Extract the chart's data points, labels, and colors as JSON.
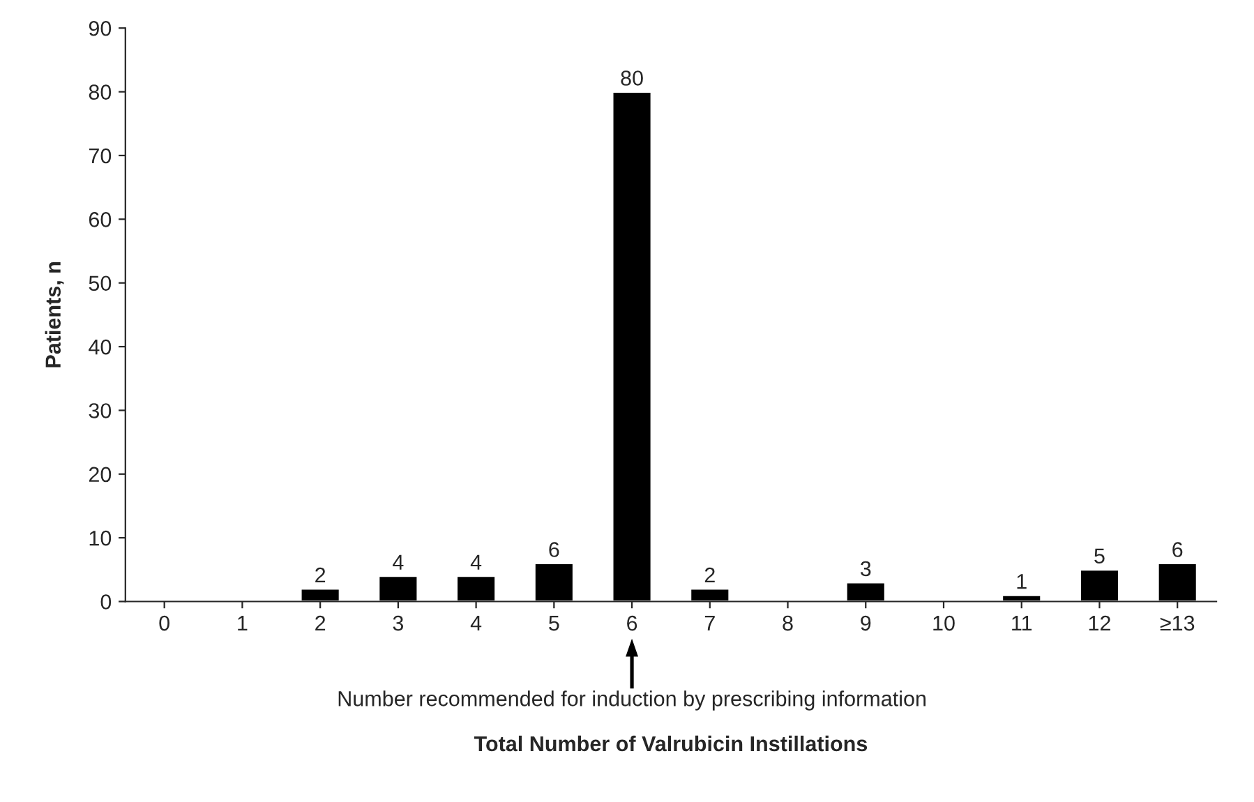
{
  "chart_data": {
    "type": "bar",
    "xlabel": "Total Number of Valrubicin Instillations",
    "ylabel": "Patients, n",
    "categories": [
      "0",
      "1",
      "2",
      "3",
      "4",
      "5",
      "6",
      "7",
      "8",
      "9",
      "10",
      "11",
      "12",
      "≥13"
    ],
    "values": [
      null,
      null,
      2,
      4,
      4,
      6,
      80,
      2,
      null,
      3,
      null,
      1,
      5,
      6
    ],
    "color": "#000000",
    "data_labels": true,
    "ylim": [
      0,
      90
    ],
    "yticks": [
      0,
      10,
      20,
      30,
      40,
      50,
      60,
      70,
      80,
      90
    ],
    "grid": false,
    "legend": false,
    "annotations": [
      "Number recommended for induction by prescribing information"
    ]
  }
}
